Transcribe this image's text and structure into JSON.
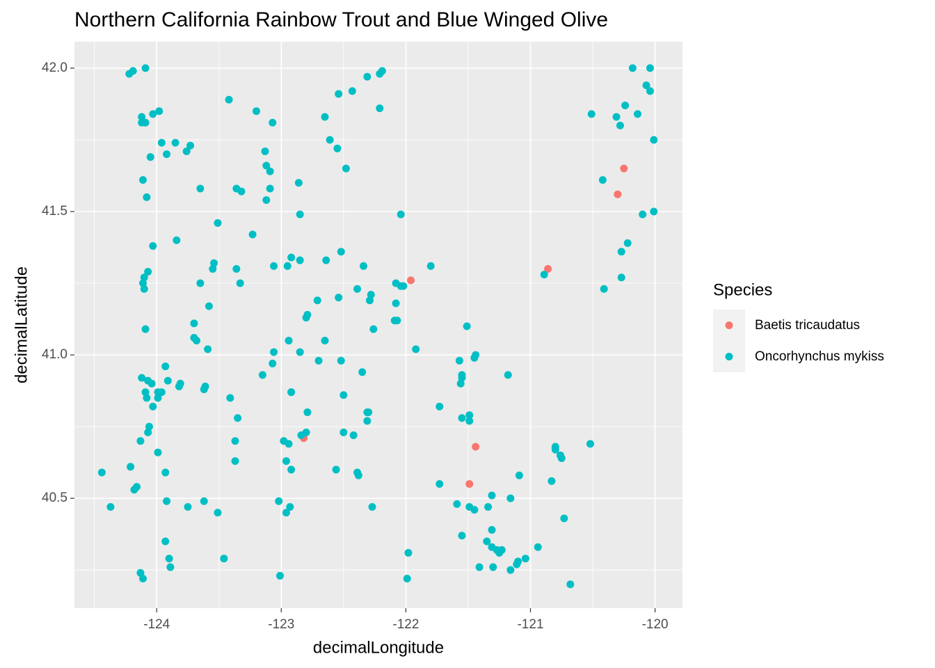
{
  "chart_data": {
    "type": "scatter",
    "title": "Northern California Rainbow Trout and Blue Winged Olive",
    "x_label": "decimalLongitude",
    "y_label": "decimalLatitude",
    "legend_title": "Species",
    "legend_position": "right",
    "grid": true,
    "xlim": [
      -124.66,
      -119.78
    ],
    "ylim": [
      40.117,
      42.092
    ],
    "xticks": [
      -124,
      -123,
      -122,
      -121,
      -120
    ],
    "yticks": [
      {
        "value": 40.5,
        "label": "40.5"
      },
      {
        "value": 41,
        "label": "41.0"
      },
      {
        "value": 41.5,
        "label": "41.5"
      },
      {
        "value": 42,
        "label": "42.0"
      }
    ],
    "xminor": [
      -124.5,
      -123.5,
      -122.5,
      -121.5,
      -120.5
    ],
    "yminor": [
      40.25,
      40.75,
      41.25,
      41.75
    ],
    "series": [
      {
        "name": "Baetis tricaudatus",
        "color": "#F8766D",
        "x": [
          -120.25,
          -120.3,
          -120.86,
          -121.96,
          -122.82,
          -121.44,
          -121.49
        ],
        "values": [
          41.65,
          41.56,
          41.3,
          41.26,
          40.71,
          40.68,
          40.55
        ]
      },
      {
        "name": "Oncorhynchus mykiss",
        "color": "#00BFC4",
        "x": [
          -124.22,
          -124.19,
          -124.09,
          -124.12,
          -124.09,
          -124.12,
          -124.03,
          -123.98,
          -124.05,
          -123.96,
          -123.92,
          -123.85,
          -123.76,
          -123.73,
          -124.11,
          -124.08,
          -123.65,
          -123.42,
          -123.2,
          -123.07,
          -123.13,
          -123.12,
          -123.09,
          -123.09,
          -123.12,
          -123.36,
          -123.32,
          -123.51,
          -123.23,
          -122.86,
          -122.85,
          -123.84,
          -124.03,
          -124.07,
          -124.1,
          -124.11,
          -124.1,
          -124.09,
          -123.65,
          -123.54,
          -123.55,
          -123.36,
          -123.33,
          -123.06,
          -122.95,
          -122.92,
          -122.85,
          -123.58,
          -123.7,
          -123.7,
          -123.68,
          -123.59,
          -123.06,
          -123.07,
          -123.15,
          -122.94,
          -122.85,
          -122.8,
          -122.79,
          -122.71,
          -122.65,
          -122.7,
          -122.65,
          -122.61,
          -122.54,
          -122.43,
          -122.55,
          -122.48,
          -122.31,
          -122.19,
          -122.21,
          -122.21,
          -122.64,
          -122.52,
          -122.34,
          -122.39,
          -122.28,
          -122.29,
          -122.54,
          -122.26,
          -122.08,
          -122.04,
          -122.02,
          -122.08,
          -122.09,
          -122.07,
          -122.04,
          -121.8,
          -121.92,
          -122.52,
          -122.35,
          -122.5,
          -122.79,
          -122.92,
          -122.92,
          -122.3,
          -122.31,
          -122.31,
          -123.35,
          -123.41,
          -123.37,
          -123.37,
          -122.98,
          -122.94,
          -122.84,
          -122.8,
          -122.5,
          -122.42,
          -122.96,
          -122.92,
          -122.56,
          -122.39,
          -122.38,
          -123.62,
          -123.51,
          -123.75,
          -123.02,
          -122.93,
          -122.96,
          -123.46,
          -123.01,
          -122.27,
          -121.98,
          -121.99,
          -124.44,
          -124.37,
          -124.21,
          -124.18,
          -124.16,
          -124.13,
          -123.99,
          -123.93,
          -123.92,
          -123.93,
          -123.9,
          -123.89,
          -124.13,
          -124.11,
          -124.12,
          -124.07,
          -124.04,
          -124.09,
          -124.08,
          -123.99,
          -123.99,
          -123.96,
          -124.03,
          -124.06,
          -124.07,
          -123.93,
          -123.91,
          -123.81,
          -123.82,
          -123.61,
          -123.62,
          -121.51,
          -121.44,
          -121.45,
          -121.57,
          -121.55,
          -121.55,
          -121.56,
          -121.18,
          -121.73,
          -121.55,
          -121.49,
          -121.49,
          -121.73,
          -121.59,
          -121.49,
          -121.45,
          -121.34,
          -121.31,
          -121.16,
          -121.09,
          -121.55,
          -121.31,
          -121.35,
          -121.41,
          -121.31,
          -121.27,
          -121.25,
          -121.23,
          -121.3,
          -121.16,
          -121.11,
          -121.1,
          -121.04,
          -120.94,
          -120.73,
          -120.68,
          -120.83,
          -120.8,
          -120.8,
          -120.76,
          -120.75,
          -120.52,
          -120.89,
          -120.51,
          -120.31,
          -120.28,
          -120.24,
          -120.18,
          -120.14,
          -120.07,
          -120.04,
          -120.04,
          -120.01,
          -120.42,
          -120.01,
          -120.1,
          -120.22,
          -120.27,
          -120.27,
          -120.41
        ],
        "values": [
          41.98,
          41.99,
          42.0,
          41.83,
          41.81,
          41.81,
          41.84,
          41.85,
          41.69,
          41.74,
          41.7,
          41.74,
          41.71,
          41.73,
          41.61,
          41.55,
          41.58,
          41.89,
          41.85,
          41.81,
          41.71,
          41.66,
          41.64,
          41.58,
          41.54,
          41.58,
          41.57,
          41.46,
          41.42,
          41.6,
          41.49,
          41.4,
          41.38,
          41.29,
          41.27,
          41.25,
          41.23,
          41.09,
          41.25,
          41.32,
          41.3,
          41.3,
          41.25,
          41.31,
          41.31,
          41.34,
          41.33,
          41.17,
          41.11,
          41.06,
          41.05,
          41.02,
          41.01,
          40.97,
          40.93,
          41.05,
          41.01,
          41.13,
          41.14,
          41.19,
          41.05,
          40.98,
          41.83,
          41.75,
          41.91,
          41.92,
          41.72,
          41.65,
          41.97,
          41.99,
          41.98,
          41.86,
          41.33,
          41.36,
          41.31,
          41.23,
          41.21,
          41.19,
          41.2,
          41.09,
          41.25,
          41.24,
          41.24,
          41.18,
          41.12,
          41.12,
          41.49,
          41.31,
          41.02,
          40.98,
          40.94,
          40.86,
          40.8,
          40.87,
          40.87,
          40.8,
          40.8,
          40.77,
          40.78,
          40.85,
          40.7,
          40.63,
          40.7,
          40.69,
          40.72,
          40.73,
          40.73,
          40.72,
          40.63,
          40.6,
          40.6,
          40.59,
          40.58,
          40.49,
          40.45,
          40.47,
          40.49,
          40.47,
          40.45,
          40.29,
          40.23,
          40.47,
          40.31,
          40.22,
          40.59,
          40.47,
          40.61,
          40.53,
          40.54,
          40.7,
          40.66,
          40.59,
          40.49,
          40.35,
          40.29,
          40.26,
          40.24,
          40.22,
          40.92,
          40.91,
          40.9,
          40.87,
          40.85,
          40.87,
          40.85,
          40.87,
          40.82,
          40.75,
          40.73,
          40.96,
          40.91,
          40.9,
          40.89,
          40.89,
          40.88,
          41.1,
          41.0,
          40.99,
          40.98,
          40.93,
          40.92,
          40.9,
          40.93,
          40.82,
          40.78,
          40.79,
          40.77,
          40.55,
          40.48,
          40.47,
          40.46,
          40.47,
          40.51,
          40.5,
          40.58,
          40.37,
          40.39,
          40.35,
          40.26,
          40.33,
          40.32,
          40.31,
          40.32,
          40.26,
          40.25,
          40.27,
          40.28,
          40.29,
          40.33,
          40.43,
          40.2,
          40.56,
          40.67,
          40.68,
          40.65,
          40.64,
          40.69,
          41.28,
          41.84,
          41.83,
          41.8,
          41.87,
          42.0,
          41.84,
          41.94,
          41.92,
          42.0,
          41.75,
          41.61,
          41.5,
          41.49,
          41.39,
          41.36,
          41.27,
          41.23
        ]
      }
    ]
  }
}
